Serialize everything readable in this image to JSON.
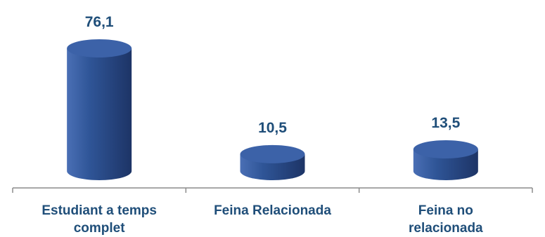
{
  "chart_data": {
    "type": "bar",
    "categories": [
      [
        "Estudiant a temps",
        "complet"
      ],
      [
        "Feina Relacionada"
      ],
      [
        "Feina no",
        "relacionada"
      ]
    ],
    "values": [
      76.1,
      10.5,
      13.5
    ],
    "value_labels": [
      "76,1",
      "10,5",
      "13,5"
    ],
    "title": "",
    "xlabel": "",
    "ylabel": "",
    "ylim": [
      0,
      100
    ],
    "bar_style": "3d-cylinder",
    "grid": false,
    "legend": "none",
    "colors": {
      "bar_light": "#4a6fb5",
      "bar_mid": "#2f5597",
      "bar_dark": "#1d3466",
      "bar_top": "#3c62a8",
      "label": "#1f4e79",
      "axis": "#8c8c8c"
    }
  }
}
